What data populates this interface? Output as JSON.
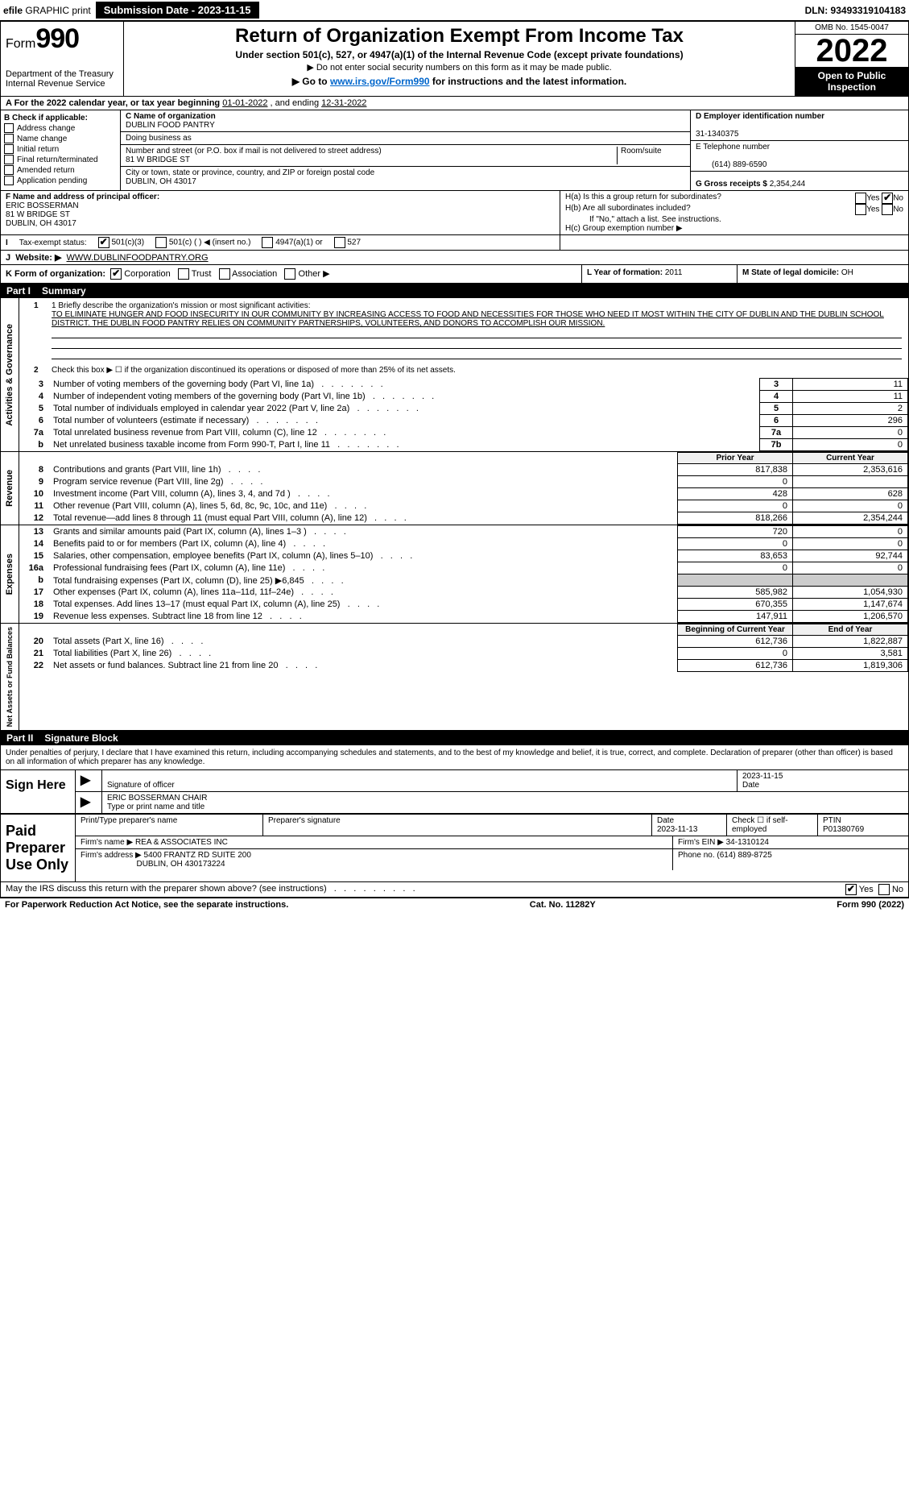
{
  "topbar": {
    "efile_prefix": "efile",
    "efile_suffix": "GRAPHIC print",
    "submission_label": "Submission Date - 2023-11-15",
    "dln": "DLN: 93493319104183"
  },
  "header": {
    "form_label": "Form",
    "form_number": "990",
    "dept1": "Department of the Treasury",
    "dept2": "Internal Revenue Service",
    "title": "Return of Organization Exempt From Income Tax",
    "subtitle": "Under section 501(c), 527, or 4947(a)(1) of the Internal Revenue Code (except private foundations)",
    "note1": "▶ Do not enter social security numbers on this form as it may be made public.",
    "note2_pre": "▶ Go to ",
    "note2_link": "www.irs.gov/Form990",
    "note2_post": " for instructions and the latest information.",
    "omb": "OMB No. 1545-0047",
    "year": "2022",
    "inspect": "Open to Public Inspection"
  },
  "rowA": {
    "text_pre": "A For the 2022 calendar year, or tax year beginning ",
    "begin": "01-01-2022",
    "mid": " , and ending ",
    "end": "12-31-2022"
  },
  "colB": {
    "header": "B Check if applicable:",
    "items": [
      "Address change",
      "Name change",
      "Initial return",
      "Final return/terminated",
      "Amended return",
      "Application pending"
    ]
  },
  "colC": {
    "c_label": "C Name of organization",
    "org_name": "DUBLIN FOOD PANTRY",
    "dba_label": "Doing business as",
    "addr_label": "Number and street (or P.O. box if mail is not delivered to street address)",
    "room_label": "Room/suite",
    "street": "81 W BRIDGE ST",
    "city_label": "City or town, state or province, country, and ZIP or foreign postal code",
    "city": "DUBLIN, OH  43017"
  },
  "colD": {
    "d_label": "D Employer identification number",
    "ein": "31-1340375",
    "e_label": "E Telephone number",
    "phone": "(614) 889-6590",
    "g_label": "G Gross receipts $",
    "gross": "2,354,244"
  },
  "rowFH": {
    "f_label": "F Name and address of principal officer:",
    "officer_name": "ERIC BOSSERMAN",
    "officer_street": "81 W BRIDGE ST",
    "officer_city": "DUBLIN, OH  43017",
    "ha_label": "H(a)  Is this a group return for subordinates?",
    "hb_label": "H(b)  Are all subordinates included?",
    "hb_note": "If \"No,\" attach a list. See instructions.",
    "hc_label": "H(c)  Group exemption number ▶",
    "yes": "Yes",
    "no": "No"
  },
  "rowIJ": {
    "i_label": "Tax-exempt status:",
    "i_501c3": "501(c)(3)",
    "i_501c": "501(c) (  ) ◀ (insert no.)",
    "i_4947": "4947(a)(1) or",
    "i_527": "527",
    "j_label": "Website: ▶",
    "website": "WWW.DUBLINFOODPANTRY.ORG"
  },
  "rowK": {
    "k_label": "K Form of organization:",
    "corp": "Corporation",
    "trust": "Trust",
    "assoc": "Association",
    "other": "Other ▶",
    "l_label": "L Year of formation:",
    "l_val": "2011",
    "m_label": "M State of legal domicile:",
    "m_val": "OH"
  },
  "part1": {
    "label": "Part I",
    "title": "Summary",
    "line1_label": "1  Briefly describe the organization's mission or most significant activities:",
    "mission": "TO ELIMINATE HUNGER AND FOOD INSECURITY IN OUR COMMUNITY BY INCREASING ACCESS TO FOOD AND NECESSITIES FOR THOSE WHO NEED IT MOST WITHIN THE CITY OF DUBLIN AND THE DUBLIN SCHOOL DISTRICT. THE DUBLIN FOOD PANTRY RELIES ON COMMUNITY PARTNERSHIPS, VOLUNTEERS, AND DONORS TO ACCOMPLISH OUR MISSION.",
    "line2": "Check this box ▶ ☐ if the organization discontinued its operations or disposed of more than 25% of its net assets.",
    "side_ag": "Activities & Governance",
    "side_rev": "Revenue",
    "side_exp": "Expenses",
    "side_net": "Net Assets or Fund Balances",
    "prior_year": "Prior Year",
    "current_year": "Current Year",
    "begin_year": "Beginning of Current Year",
    "end_year": "End of Year",
    "lines_ag": [
      {
        "n": "3",
        "t": "Number of voting members of the governing body (Part VI, line 1a)",
        "box": "3",
        "v": "11"
      },
      {
        "n": "4",
        "t": "Number of independent voting members of the governing body (Part VI, line 1b)",
        "box": "4",
        "v": "11"
      },
      {
        "n": "5",
        "t": "Total number of individuals employed in calendar year 2022 (Part V, line 2a)",
        "box": "5",
        "v": "2"
      },
      {
        "n": "6",
        "t": "Total number of volunteers (estimate if necessary)",
        "box": "6",
        "v": "296"
      },
      {
        "n": "7a",
        "t": "Total unrelated business revenue from Part VIII, column (C), line 12",
        "box": "7a",
        "v": "0"
      },
      {
        "n": "b",
        "t": "Net unrelated business taxable income from Form 990-T, Part I, line 11",
        "box": "7b",
        "v": "0"
      }
    ],
    "lines_rev": [
      {
        "n": "8",
        "t": "Contributions and grants (Part VIII, line 1h)",
        "p": "817,838",
        "c": "2,353,616"
      },
      {
        "n": "9",
        "t": "Program service revenue (Part VIII, line 2g)",
        "p": "0",
        "c": ""
      },
      {
        "n": "10",
        "t": "Investment income (Part VIII, column (A), lines 3, 4, and 7d )",
        "p": "428",
        "c": "628"
      },
      {
        "n": "11",
        "t": "Other revenue (Part VIII, column (A), lines 5, 6d, 8c, 9c, 10c, and 11e)",
        "p": "0",
        "c": "0"
      },
      {
        "n": "12",
        "t": "Total revenue—add lines 8 through 11 (must equal Part VIII, column (A), line 12)",
        "p": "818,266",
        "c": "2,354,244"
      }
    ],
    "lines_exp": [
      {
        "n": "13",
        "t": "Grants and similar amounts paid (Part IX, column (A), lines 1–3 )",
        "p": "720",
        "c": "0"
      },
      {
        "n": "14",
        "t": "Benefits paid to or for members (Part IX, column (A), line 4)",
        "p": "0",
        "c": "0"
      },
      {
        "n": "15",
        "t": "Salaries, other compensation, employee benefits (Part IX, column (A), lines 5–10)",
        "p": "83,653",
        "c": "92,744"
      },
      {
        "n": "16a",
        "t": "Professional fundraising fees (Part IX, column (A), line 11e)",
        "p": "0",
        "c": "0"
      },
      {
        "n": "b",
        "t": "Total fundraising expenses (Part IX, column (D), line 25) ▶6,845",
        "p": "shade",
        "c": "shade"
      },
      {
        "n": "17",
        "t": "Other expenses (Part IX, column (A), lines 11a–11d, 11f–24e)",
        "p": "585,982",
        "c": "1,054,930"
      },
      {
        "n": "18",
        "t": "Total expenses. Add lines 13–17 (must equal Part IX, column (A), line 25)",
        "p": "670,355",
        "c": "1,147,674"
      },
      {
        "n": "19",
        "t": "Revenue less expenses. Subtract line 18 from line 12",
        "p": "147,911",
        "c": "1,206,570"
      }
    ],
    "lines_net": [
      {
        "n": "20",
        "t": "Total assets (Part X, line 16)",
        "p": "612,736",
        "c": "1,822,887"
      },
      {
        "n": "21",
        "t": "Total liabilities (Part X, line 26)",
        "p": "0",
        "c": "3,581"
      },
      {
        "n": "22",
        "t": "Net assets or fund balances. Subtract line 21 from line 20",
        "p": "612,736",
        "c": "1,819,306"
      }
    ]
  },
  "part2": {
    "label": "Part II",
    "title": "Signature Block",
    "penalties": "Under penalties of perjury, I declare that I have examined this return, including accompanying schedules and statements, and to the best of my knowledge and belief, it is true, correct, and complete. Declaration of preparer (other than officer) is based on all information of which preparer has any knowledge.",
    "sign_here": "Sign Here",
    "sig_officer": "Signature of officer",
    "sig_date": "2023-11-15",
    "date_lbl": "Date",
    "officer": "ERIC BOSSERMAN  CHAIR",
    "type_name": "Type or print name and title",
    "paid": "Paid Preparer Use Only",
    "prep_name_lbl": "Print/Type preparer's name",
    "prep_sig_lbl": "Preparer's signature",
    "prep_date": "2023-11-13",
    "check_self": "Check ☐ if self-employed",
    "ptin_lbl": "PTIN",
    "ptin": "P01380769",
    "firm_name_lbl": "Firm's name    ▶",
    "firm_name": "REA & ASSOCIATES INC",
    "firm_ein_lbl": "Firm's EIN ▶",
    "firm_ein": "34-1310124",
    "firm_addr_lbl": "Firm's address ▶",
    "firm_addr1": "5400 FRANTZ RD SUITE 200",
    "firm_addr2": "DUBLIN, OH  430173224",
    "firm_phone_lbl": "Phone no.",
    "firm_phone": "(614) 889-8725",
    "may_irs": "May the IRS discuss this return with the preparer shown above? (see instructions)"
  },
  "footer": {
    "left": "For Paperwork Reduction Act Notice, see the separate instructions.",
    "mid": "Cat. No. 11282Y",
    "right": "Form 990 (2022)"
  }
}
